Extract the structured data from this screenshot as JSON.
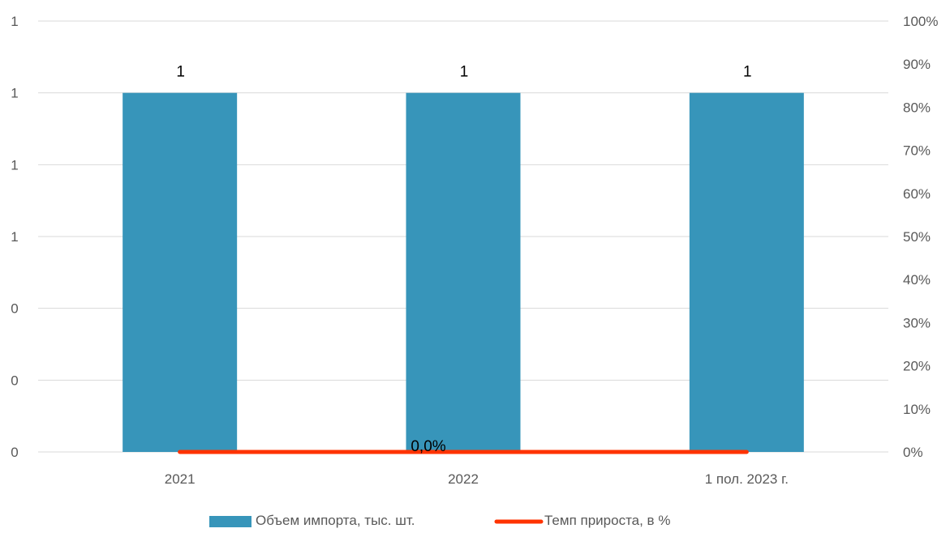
{
  "chart_data": {
    "type": "bar",
    "categories": [
      "2021",
      "2022",
      "1 пол. 2023 г."
    ],
    "series": [
      {
        "name": "Объем импорта, тыс. шт.",
        "kind": "bar",
        "axis": "left",
        "values": [
          1,
          1,
          1
        ],
        "data_labels": [
          "1",
          "1",
          "1"
        ],
        "color": "#3795BA"
      },
      {
        "name": "Темп прироста, в %",
        "kind": "line",
        "axis": "right",
        "values": [
          0,
          0,
          0
        ],
        "data_labels": [
          "",
          "0,0%",
          ""
        ],
        "color": "#FF3300"
      }
    ],
    "y_left": {
      "min": 0,
      "max": 1.2,
      "ticks": [
        0,
        0.2,
        0.4,
        0.6,
        0.8,
        1.0,
        1.2
      ],
      "tick_labels": [
        "0",
        "0",
        "0",
        "1",
        "1",
        "1",
        "1"
      ]
    },
    "y_right": {
      "min": 0,
      "max": 100,
      "ticks": [
        0,
        10,
        20,
        30,
        40,
        50,
        60,
        70,
        80,
        90,
        100
      ],
      "tick_labels": [
        "0%",
        "10%",
        "20%",
        "30%",
        "40%",
        "50%",
        "60%",
        "70%",
        "80%",
        "90%",
        "100%"
      ]
    },
    "grid": true,
    "legend_position": "bottom"
  }
}
